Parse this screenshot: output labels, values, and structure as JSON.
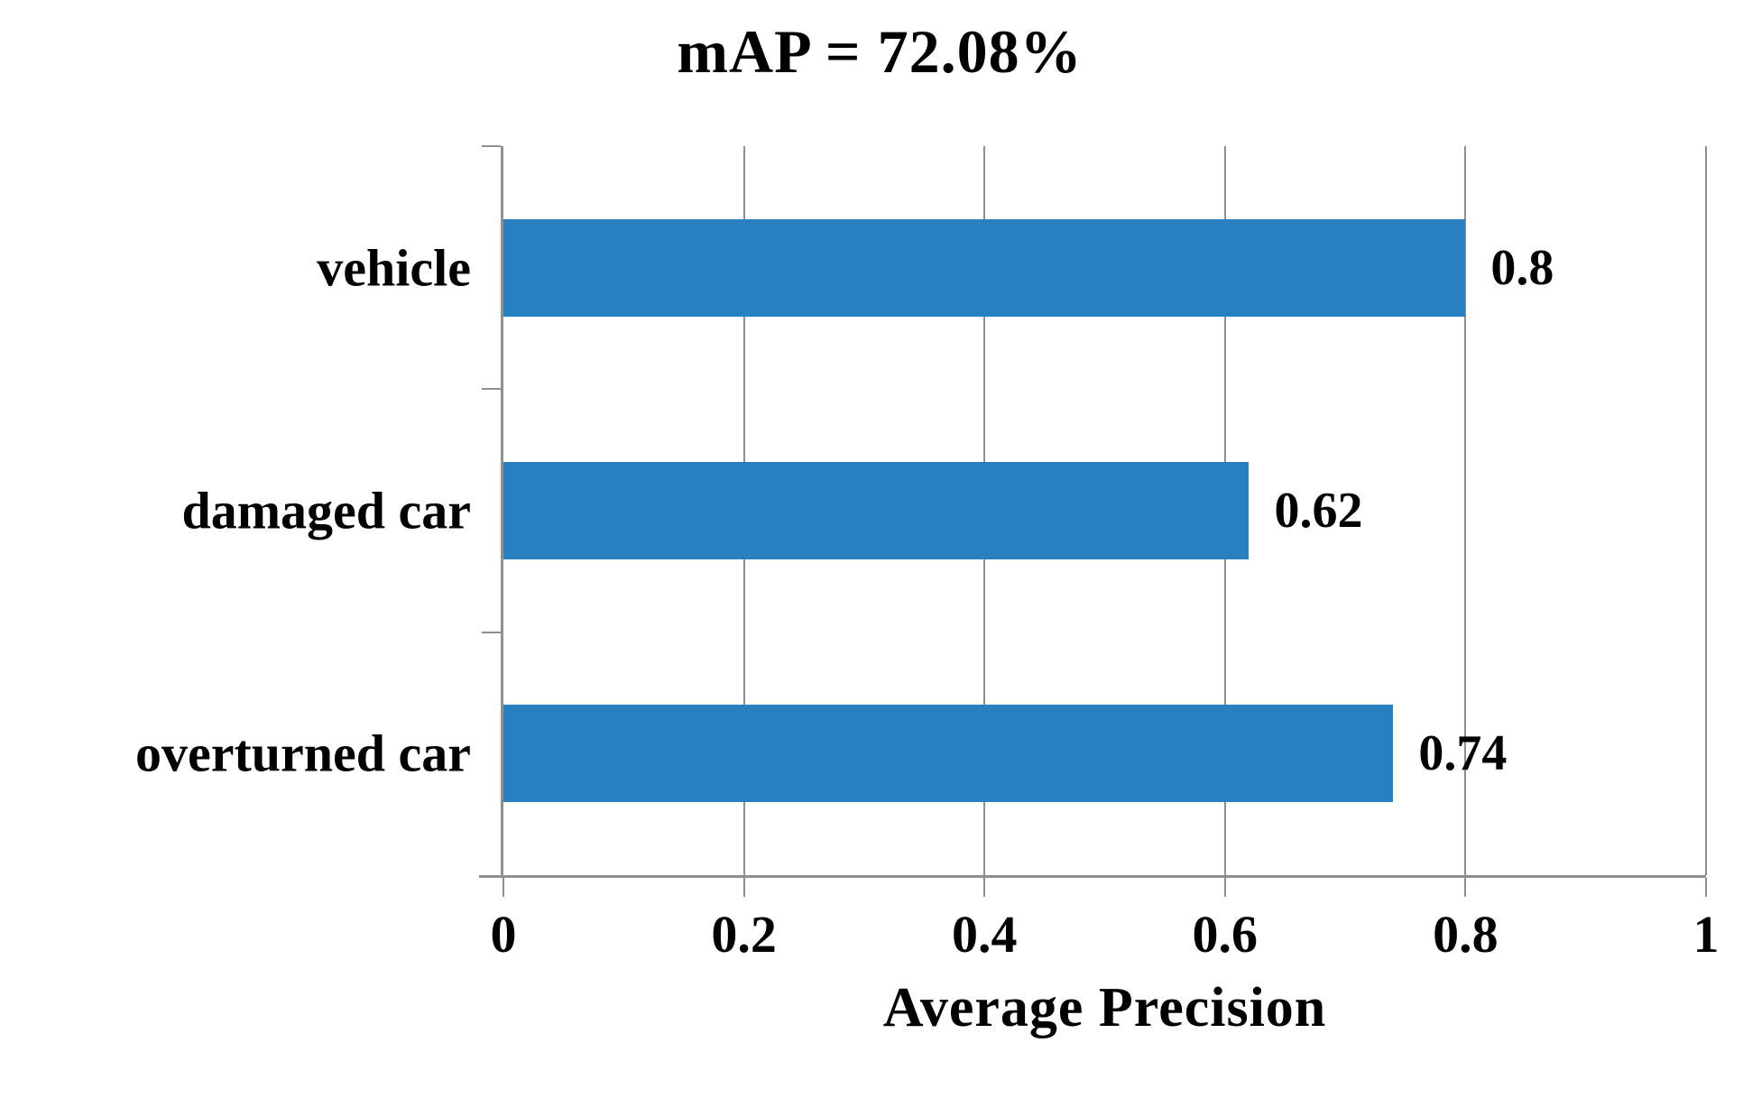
{
  "title": "mAP = 72.08%",
  "colors": {
    "bar": "#2880be",
    "axis": "#8f8f8f",
    "grid": "#8f8f8f",
    "text": "#000000"
  },
  "chart_data": {
    "type": "bar",
    "orientation": "horizontal",
    "title": "mAP = 72.08%",
    "xlabel": "Average Precision",
    "ylabel": "",
    "categories": [
      "vehicle",
      "damaged car",
      "overturned car"
    ],
    "values": [
      0.8,
      0.62,
      0.74
    ],
    "value_labels": [
      "0.8",
      "0.62",
      "0.74"
    ],
    "xlim": [
      0,
      1
    ],
    "xticks": [
      0,
      0.2,
      0.4,
      0.6,
      0.8,
      1
    ],
    "xtick_labels": [
      "0",
      "0.2",
      "0.4",
      "0.6",
      "0.8",
      "1"
    ],
    "grid": true,
    "legend": false,
    "bar_color": "#2880be"
  }
}
